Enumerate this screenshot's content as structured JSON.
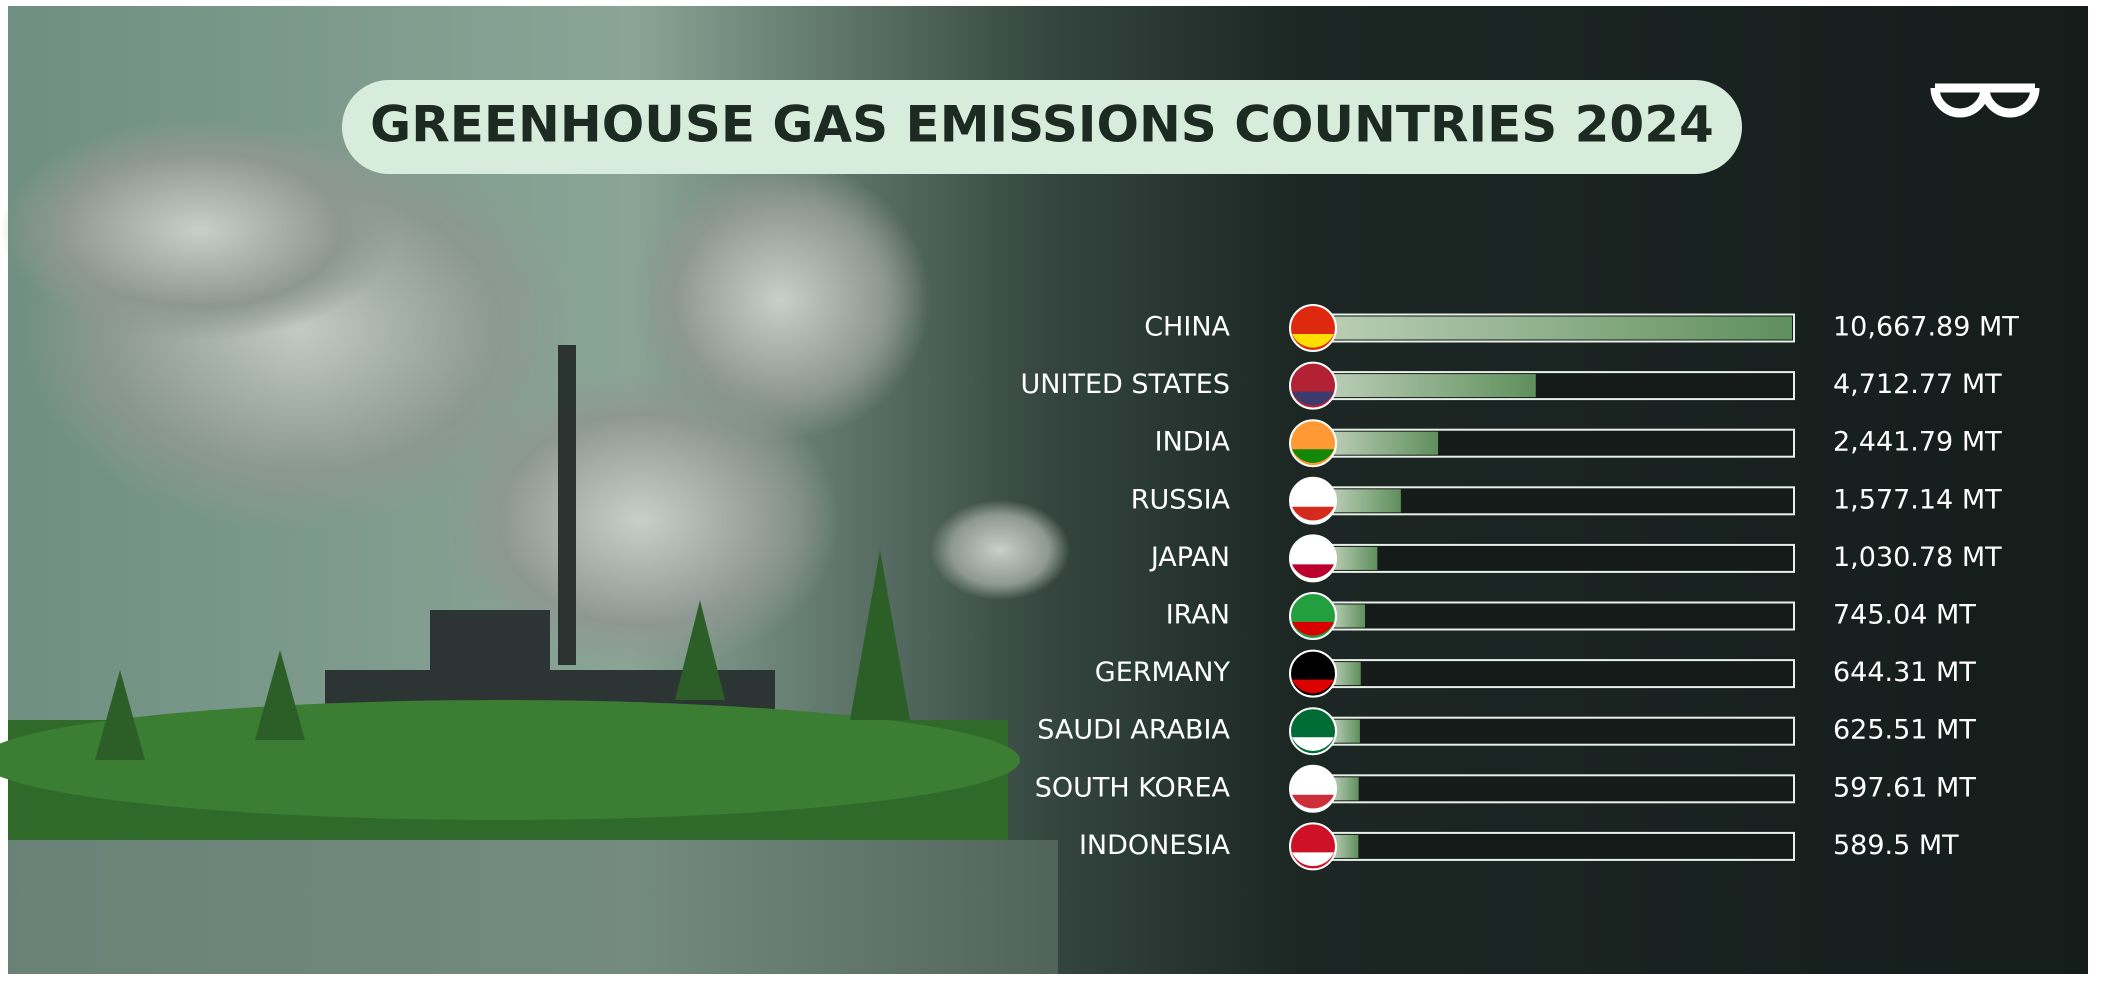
{
  "chart_data": {
    "type": "bar",
    "orientation": "horizontal",
    "title": "GREENHOUSE GAS EMISSIONS COUNTRIES 2024",
    "categories": [
      "CHINA",
      "UNITED STATES",
      "INDIA",
      "RUSSIA",
      "JAPAN",
      "IRAN",
      "GERMANY",
      "SAUDI ARABIA",
      "SOUTH KOREA",
      "INDONESIA"
    ],
    "values": [
      10667.89,
      4712.77,
      2441.79,
      1577.14,
      1030.78,
      745.04,
      644.31,
      625.51,
      597.61,
      589.5
    ],
    "value_labels": [
      "10,667.89 MT",
      "4,712.77 MT",
      "2,441.79 MT",
      "1,577.14 MT",
      "1,030.78 MT",
      "745.04 MT",
      "644.31 MT",
      "625.51 MT",
      "597.61 MT",
      "589.5 MT"
    ],
    "color": "#5f8f5c"
  }
}
